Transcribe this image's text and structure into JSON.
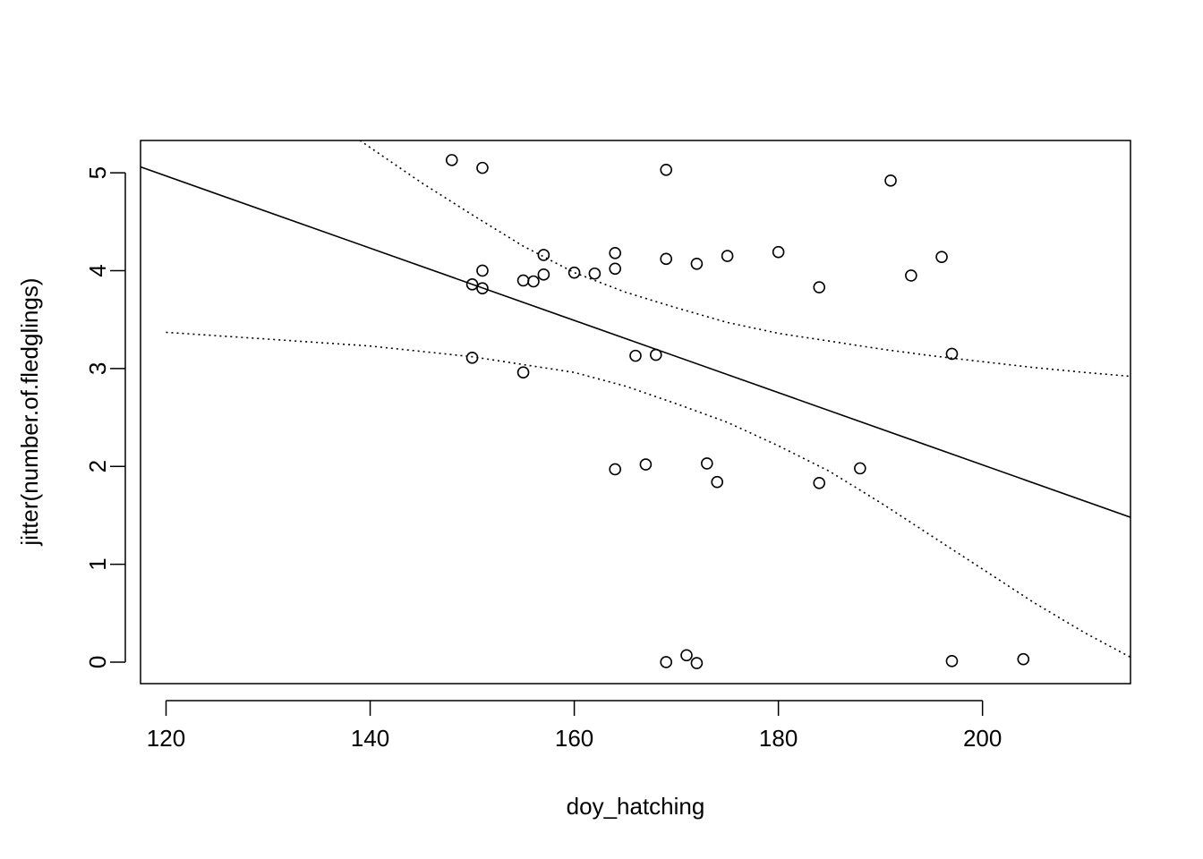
{
  "chart_data": {
    "type": "scatter",
    "title": "",
    "xlabel": "doy_hatching",
    "ylabel": "jitter(number.of.fledglings)",
    "xlim": [
      117.5,
      214.5
    ],
    "ylim": [
      -0.22,
      5.33
    ],
    "xticks": [
      120,
      140,
      160,
      180,
      200
    ],
    "yticks": [
      0,
      1,
      2,
      3,
      4,
      5
    ],
    "grid": false,
    "legend": "none",
    "points": [
      {
        "x": 148,
        "y": 5.13
      },
      {
        "x": 151,
        "y": 5.05
      },
      {
        "x": 169,
        "y": 5.03
      },
      {
        "x": 191,
        "y": 4.92
      },
      {
        "x": 157,
        "y": 4.16
      },
      {
        "x": 164,
        "y": 4.18
      },
      {
        "x": 169,
        "y": 4.12
      },
      {
        "x": 172,
        "y": 4.07
      },
      {
        "x": 175,
        "y": 4.15
      },
      {
        "x": 180,
        "y": 4.19
      },
      {
        "x": 196,
        "y": 4.14
      },
      {
        "x": 193,
        "y": 3.95
      },
      {
        "x": 151,
        "y": 4.0
      },
      {
        "x": 150,
        "y": 3.86
      },
      {
        "x": 151,
        "y": 3.82
      },
      {
        "x": 155,
        "y": 3.9
      },
      {
        "x": 156,
        "y": 3.89
      },
      {
        "x": 157,
        "y": 3.96
      },
      {
        "x": 160,
        "y": 3.98
      },
      {
        "x": 162,
        "y": 3.97
      },
      {
        "x": 164,
        "y": 4.02
      },
      {
        "x": 184,
        "y": 3.83
      },
      {
        "x": 150,
        "y": 3.11
      },
      {
        "x": 155,
        "y": 2.96
      },
      {
        "x": 166,
        "y": 3.13
      },
      {
        "x": 168,
        "y": 3.14
      },
      {
        "x": 197,
        "y": 3.15
      },
      {
        "x": 164,
        "y": 1.97
      },
      {
        "x": 167,
        "y": 2.02
      },
      {
        "x": 173,
        "y": 2.03
      },
      {
        "x": 174,
        "y": 1.84
      },
      {
        "x": 184,
        "y": 1.83
      },
      {
        "x": 188,
        "y": 1.98
      },
      {
        "x": 169,
        "y": 0.0
      },
      {
        "x": 171,
        "y": 0.07
      },
      {
        "x": 172,
        "y": -0.01
      },
      {
        "x": 197,
        "y": 0.01
      },
      {
        "x": 204,
        "y": 0.03
      }
    ],
    "fit_line": {
      "x": [
        117.5,
        214.5
      ],
      "y": [
        5.06,
        1.48
      ]
    },
    "ci_upper": {
      "x": [
        139,
        145,
        150,
        155,
        160,
        165,
        170,
        175,
        180,
        185,
        190,
        195,
        200,
        205,
        210,
        214.5
      ],
      "y": [
        5.33,
        4.9,
        4.57,
        4.25,
        3.98,
        3.78,
        3.62,
        3.47,
        3.36,
        3.28,
        3.2,
        3.13,
        3.07,
        3.01,
        2.96,
        2.92
      ]
    },
    "ci_lower": {
      "x": [
        120,
        130,
        140,
        150,
        160,
        165,
        170,
        175,
        180,
        185,
        190,
        195,
        200,
        205,
        210,
        214.5
      ],
      "y": [
        3.37,
        3.3,
        3.23,
        3.12,
        2.96,
        2.82,
        2.64,
        2.45,
        2.21,
        1.95,
        1.63,
        1.29,
        0.95,
        0.61,
        0.3,
        0.05
      ]
    }
  }
}
